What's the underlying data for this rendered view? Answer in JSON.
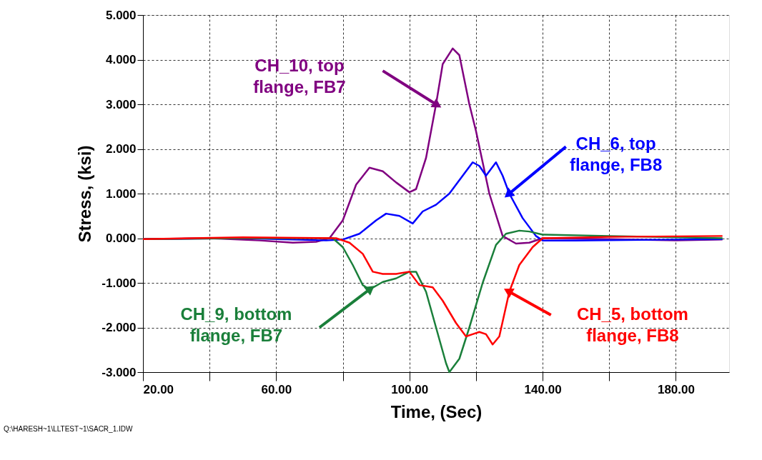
{
  "chart_data": {
    "type": "line",
    "xlabel": "Time, (Sec)",
    "ylabel": "Stress, (ksi)",
    "xlim": [
      20,
      196
    ],
    "ylim": [
      -3,
      5
    ],
    "xticks": [
      {
        "value": 20,
        "label": "20.00"
      },
      {
        "value": 40,
        "label": null
      },
      {
        "value": 60,
        "label": "60.00"
      },
      {
        "value": 80,
        "label": null
      },
      {
        "value": 100,
        "label": "100.00"
      },
      {
        "value": 120,
        "label": null
      },
      {
        "value": 140,
        "label": "140.00"
      },
      {
        "value": 160,
        "label": null
      },
      {
        "value": 180,
        "label": "180.00"
      }
    ],
    "yticks": [
      {
        "value": -3,
        "label": "-3.000"
      },
      {
        "value": -2,
        "label": "-2.000"
      },
      {
        "value": -1,
        "label": "-1.000"
      },
      {
        "value": 0,
        "label": "0.000"
      },
      {
        "value": 1,
        "label": "1.000"
      },
      {
        "value": 2,
        "label": "2.000"
      },
      {
        "value": 3,
        "label": "3.000"
      },
      {
        "value": 4,
        "label": "4.000"
      },
      {
        "value": 5,
        "label": "5.000"
      }
    ],
    "grid": true,
    "marker": "none",
    "line_style": "solid",
    "series": [
      {
        "color": "#800080",
        "x": [
          20,
          40,
          55,
          65,
          72,
          76,
          80,
          84,
          88,
          92,
          96,
          100,
          102,
          105,
          108,
          110,
          113,
          115,
          118,
          120,
          124,
          128,
          132,
          136,
          140,
          160,
          180,
          194
        ],
        "values": [
          -0.02,
          0,
          -0.05,
          -0.1,
          -0.08,
          0,
          0.4,
          1.2,
          1.58,
          1.5,
          1.25,
          1.03,
          1.1,
          1.8,
          3.0,
          3.9,
          4.25,
          4.1,
          3.0,
          2.4,
          1.0,
          0.05,
          -0.12,
          -0.1,
          0,
          -0.02,
          -0.05,
          -0.03
        ]
      },
      {
        "color": "#0000ff",
        "x": [
          20,
          50,
          75,
          80,
          85,
          90,
          93,
          97,
          101,
          104,
          108,
          112,
          116,
          119,
          121,
          123,
          126,
          128,
          130,
          134,
          138,
          140,
          150,
          180,
          194
        ],
        "values": [
          -0.02,
          0,
          -0.05,
          -0.03,
          0.1,
          0.4,
          0.55,
          0.5,
          0.33,
          0.6,
          0.75,
          1.0,
          1.4,
          1.7,
          1.62,
          1.4,
          1.7,
          1.4,
          1.0,
          0.45,
          0.05,
          -0.05,
          -0.05,
          -0.03,
          -0.02
        ]
      },
      {
        "color": "#1a7f3a",
        "x": [
          20,
          50,
          77,
          80,
          83,
          86,
          88,
          92,
          96,
          100,
          102,
          105,
          108,
          111,
          112,
          115,
          118,
          122,
          126,
          129,
          133,
          136,
          140,
          160,
          194
        ],
        "values": [
          -0.02,
          0,
          0,
          -0.2,
          -0.6,
          -1.05,
          -1.15,
          -0.98,
          -0.9,
          -0.75,
          -0.75,
          -1.2,
          -2.0,
          -2.8,
          -3.0,
          -2.7,
          -2.0,
          -1.0,
          -0.15,
          0.1,
          0.17,
          0.15,
          0.08,
          0.05,
          0.0
        ]
      },
      {
        "color": "#ff0000",
        "x": [
          20,
          50,
          78,
          82,
          86,
          89,
          92,
          96,
          100,
          103,
          107,
          110,
          114,
          117,
          119,
          121,
          123,
          125,
          127,
          130,
          133,
          137,
          140,
          160,
          194
        ],
        "values": [
          -0.02,
          0.02,
          0,
          -0.1,
          -0.35,
          -0.75,
          -0.8,
          -0.8,
          -0.75,
          -1.05,
          -1.1,
          -1.4,
          -1.9,
          -2.2,
          -2.15,
          -2.1,
          -2.15,
          -2.38,
          -2.2,
          -1.2,
          -0.6,
          -0.2,
          0,
          0.03,
          0.05
        ]
      }
    ],
    "annotations": [
      "CH_10, top flange, FB7",
      {
        "text": "CH_6, top flange, FB8",
        "x": 130,
        "y": 1.0
      },
      "CH_9, bottom flange, FB7",
      "CH_5, bottom flange, FB8",
      "Q:\\HARESH~1\\LLTEST~1\\SACR_1.IDW"
    ]
  }
}
